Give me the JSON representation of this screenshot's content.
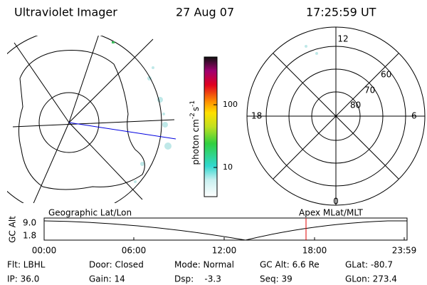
{
  "header": {
    "title": "Ultraviolet Imager",
    "date": "27 Aug 07",
    "time": "17:25:59 UT"
  },
  "colorbar": {
    "label": [
      "photon cm",
      "-2",
      "s",
      "-1"
    ],
    "ticks": [
      "100",
      "10"
    ]
  },
  "polar": {
    "labels": [
      "12",
      "18",
      "6",
      "0",
      "60",
      "70",
      "80"
    ]
  },
  "maps": {
    "left": "Geographic Lat/Lon",
    "right": "Apex MLat/MLT"
  },
  "orbit": {
    "ylabel": "GC Alt",
    "yticks": [
      "9.0",
      "1.8"
    ],
    "xticks": [
      "00:00",
      "06:00",
      "12:00",
      "18:00",
      "23:59"
    ]
  },
  "footer": {
    "rows": [
      [
        "Flt: LBHL",
        "Door: Closed",
        "Mode: Normal",
        "GC Alt: 6.6 Re",
        "GLat: -80.7"
      ],
      [
        "IP: 36.0",
        "Gain: 14",
        "Dsp:    -3.3",
        "Seq: 39",
        "GLon: 273.4"
      ]
    ]
  }
}
